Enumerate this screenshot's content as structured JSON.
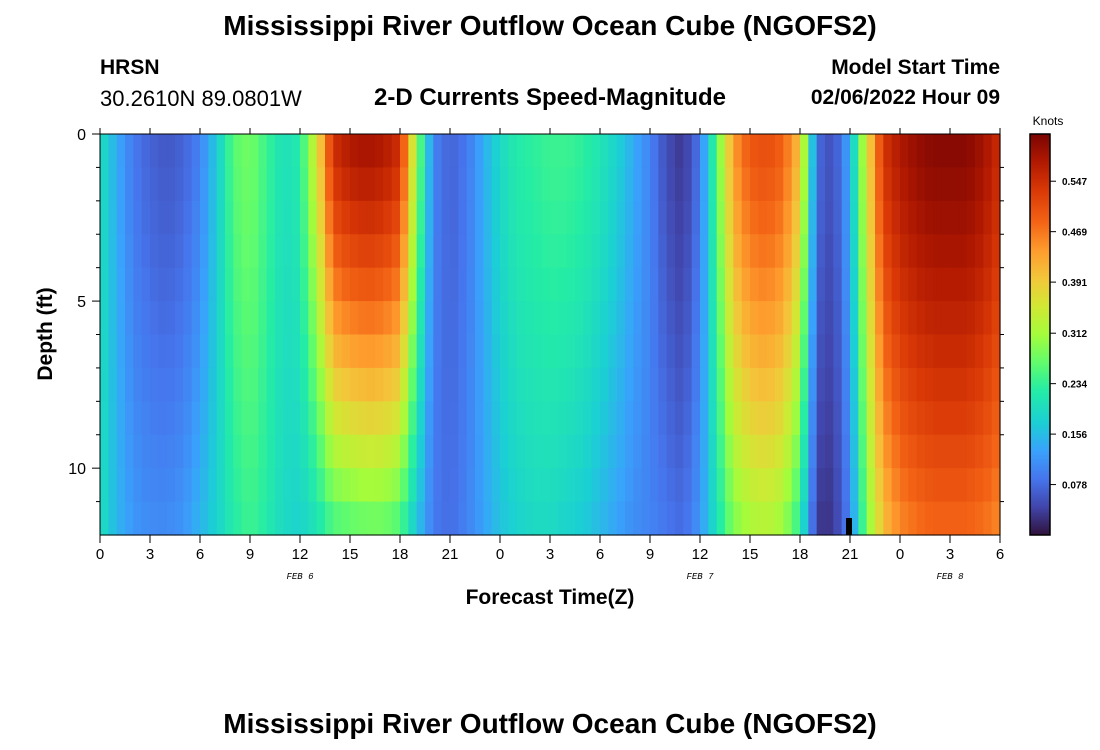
{
  "page": {
    "title": "Mississippi River Outflow Ocean Cube (NGOFS2)",
    "title_bottom": "Mississippi River Outflow Ocean Cube (NGOFS2)",
    "station": "HRSN",
    "coordinates": "30.2610N  89.0801W",
    "subtitle": "2-D Currents Speed-Magnitude",
    "model_start_label": "Model Start Time",
    "model_start_value": "02/06/2022 Hour 09"
  },
  "chart_data": {
    "type": "heatmap",
    "title": "2-D Currents Speed-Magnitude",
    "xlabel": "Forecast Time(Z)",
    "ylabel": "Depth (ft)",
    "xlim": [
      0,
      54
    ],
    "ylim": [
      0,
      12
    ],
    "x_ticks": [
      0,
      3,
      6,
      9,
      12,
      15,
      18,
      21,
      24,
      27,
      30,
      33,
      36,
      39,
      42,
      45,
      48,
      51,
      54
    ],
    "x_tick_labels": [
      "0",
      "3",
      "6",
      "9",
      "12",
      "15",
      "18",
      "21",
      "0",
      "3",
      "6",
      "9",
      "12",
      "15",
      "18",
      "21",
      "0",
      "3",
      "6"
    ],
    "date_labels": [
      {
        "x": 12,
        "text": "FEB 6"
      },
      {
        "x": 36,
        "text": "FEB 7"
      },
      {
        "x": 51,
        "text": "FEB 8"
      }
    ],
    "y_ticks": [
      0,
      5,
      10
    ],
    "y_tick_labels": [
      "0",
      "5",
      "10"
    ],
    "colorbar": {
      "unit": "Knots",
      "min": 0.0,
      "max": 0.62,
      "ticks": [
        0.078,
        0.156,
        0.234,
        0.312,
        0.391,
        0.469,
        0.547
      ],
      "tick_labels": [
        "0.078",
        "0.156",
        "0.234",
        "0.312",
        "0.391",
        "0.469",
        "0.547"
      ]
    },
    "time_profile_surface": [
      [
        0,
        0.2
      ],
      [
        1,
        0.14
      ],
      [
        2,
        0.09
      ],
      [
        3,
        0.07
      ],
      [
        4,
        0.06
      ],
      [
        5,
        0.07
      ],
      [
        6,
        0.1
      ],
      [
        7,
        0.17
      ],
      [
        8,
        0.26
      ],
      [
        9,
        0.28
      ],
      [
        10,
        0.24
      ],
      [
        11,
        0.2
      ],
      [
        12,
        0.22
      ],
      [
        13,
        0.36
      ],
      [
        14,
        0.55
      ],
      [
        15,
        0.58
      ],
      [
        16,
        0.59
      ],
      [
        17,
        0.58
      ],
      [
        18,
        0.55
      ],
      [
        19,
        0.3
      ],
      [
        20,
        0.1
      ],
      [
        21,
        0.07
      ],
      [
        22,
        0.09
      ],
      [
        23,
        0.14
      ],
      [
        24,
        0.19
      ],
      [
        25,
        0.22
      ],
      [
        26,
        0.23
      ],
      [
        27,
        0.24
      ],
      [
        28,
        0.24
      ],
      [
        29,
        0.23
      ],
      [
        30,
        0.21
      ],
      [
        31,
        0.18
      ],
      [
        32,
        0.14
      ],
      [
        33,
        0.1
      ],
      [
        34,
        0.05
      ],
      [
        35,
        0.03
      ],
      [
        36,
        0.09
      ],
      [
        37,
        0.26
      ],
      [
        38,
        0.44
      ],
      [
        39,
        0.5
      ],
      [
        40,
        0.51
      ],
      [
        41,
        0.49
      ],
      [
        42,
        0.4
      ],
      [
        43,
        0.08
      ],
      [
        44,
        0.05
      ],
      [
        45,
        0.14
      ],
      [
        46,
        0.36
      ],
      [
        47,
        0.54
      ],
      [
        48,
        0.58
      ],
      [
        49,
        0.6
      ],
      [
        50,
        0.61
      ],
      [
        51,
        0.61
      ],
      [
        52,
        0.61
      ],
      [
        53,
        0.59
      ],
      [
        54,
        0.55
      ]
    ],
    "time_profile_bottom": [
      [
        0,
        0.2
      ],
      [
        1,
        0.15
      ],
      [
        2,
        0.12
      ],
      [
        3,
        0.11
      ],
      [
        4,
        0.11
      ],
      [
        5,
        0.12
      ],
      [
        6,
        0.15
      ],
      [
        7,
        0.18
      ],
      [
        8,
        0.22
      ],
      [
        9,
        0.24
      ],
      [
        10,
        0.22
      ],
      [
        11,
        0.19
      ],
      [
        12,
        0.18
      ],
      [
        13,
        0.2
      ],
      [
        14,
        0.24
      ],
      [
        15,
        0.25
      ],
      [
        16,
        0.26
      ],
      [
        17,
        0.26
      ],
      [
        18,
        0.24
      ],
      [
        19,
        0.16
      ],
      [
        20,
        0.09
      ],
      [
        21,
        0.08
      ],
      [
        22,
        0.1
      ],
      [
        23,
        0.13
      ],
      [
        24,
        0.16
      ],
      [
        25,
        0.18
      ],
      [
        26,
        0.19
      ],
      [
        27,
        0.19
      ],
      [
        28,
        0.18
      ],
      [
        29,
        0.17
      ],
      [
        30,
        0.15
      ],
      [
        31,
        0.13
      ],
      [
        32,
        0.11
      ],
      [
        33,
        0.1
      ],
      [
        34,
        0.09
      ],
      [
        35,
        0.08
      ],
      [
        36,
        0.12
      ],
      [
        37,
        0.2
      ],
      [
        38,
        0.28
      ],
      [
        39,
        0.31
      ],
      [
        40,
        0.32
      ],
      [
        41,
        0.3
      ],
      [
        42,
        0.22
      ],
      [
        43,
        0.03
      ],
      [
        44,
        0.03
      ],
      [
        45,
        0.1
      ],
      [
        46,
        0.28
      ],
      [
        47,
        0.4
      ],
      [
        48,
        0.45
      ],
      [
        49,
        0.47
      ],
      [
        50,
        0.48
      ],
      [
        51,
        0.48
      ],
      [
        52,
        0.48
      ],
      [
        53,
        0.47
      ],
      [
        54,
        0.45
      ]
    ],
    "depth_levels": 12
  }
}
